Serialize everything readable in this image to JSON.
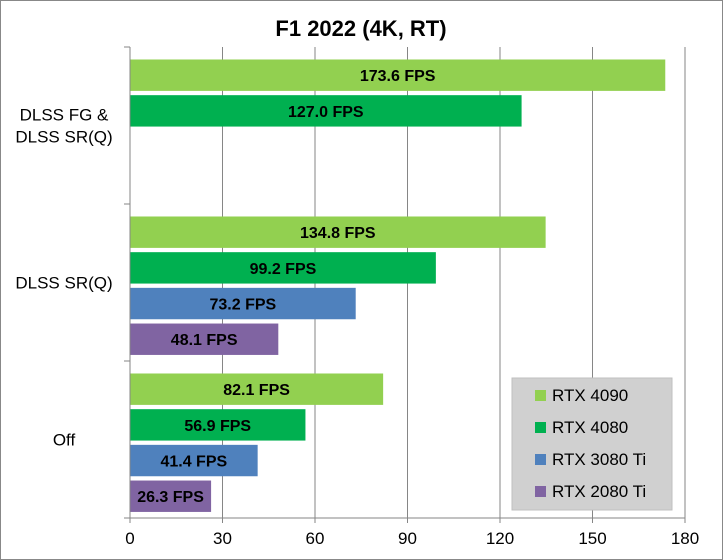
{
  "chart_data": {
    "type": "bar",
    "orientation": "horizontal",
    "title": "F1 2022 (4K, RT)",
    "xlabel": "",
    "ylabel": "",
    "xlim": [
      0,
      180
    ],
    "x_ticks": [
      0,
      30,
      60,
      90,
      120,
      150,
      180
    ],
    "grid": "vertical",
    "legend_position": "bottom-right",
    "categories": [
      {
        "lines": [
          "DLSS FG &",
          "DLSS SR(Q)"
        ]
      },
      {
        "lines": [
          "DLSS SR(Q)"
        ]
      },
      {
        "lines": [
          "Off"
        ]
      }
    ],
    "series": [
      {
        "name": "RTX 4090",
        "color": "#92d050",
        "values": [
          173.6,
          134.8,
          82.1
        ],
        "labels": [
          "173.6 FPS",
          "134.8 FPS",
          "82.1 FPS"
        ]
      },
      {
        "name": "RTX 4080",
        "color": "#00b050",
        "values": [
          127.0,
          99.2,
          56.9
        ],
        "labels": [
          "127.0 FPS",
          "99.2 FPS",
          "56.9 FPS"
        ]
      },
      {
        "name": "RTX 3080 Ti",
        "color": "#4f81bd",
        "values": [
          null,
          73.2,
          41.4
        ],
        "labels": [
          null,
          "73.2 FPS",
          "41.4 FPS"
        ]
      },
      {
        "name": "RTX 2080 Ti",
        "color": "#8064a2",
        "values": [
          null,
          48.1,
          26.3
        ],
        "labels": [
          null,
          "48.1 FPS",
          "26.3 FPS"
        ]
      }
    ]
  }
}
